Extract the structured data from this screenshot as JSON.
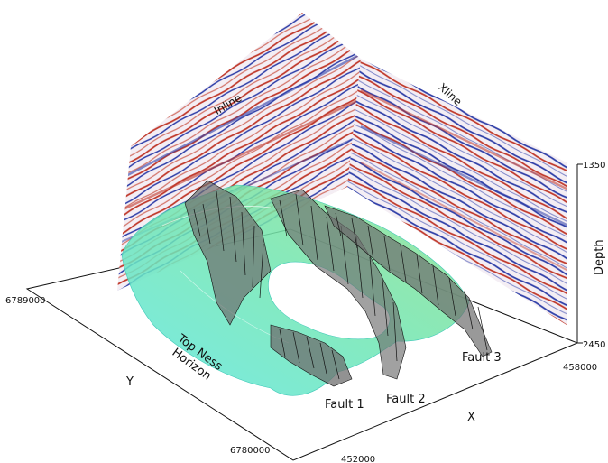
{
  "labels": {
    "inline": "Inline",
    "xline": "Xline",
    "horizon": [
      "Top Ness",
      "Horizon"
    ],
    "fault1": "Fault 1",
    "fault2": "Fault 2",
    "fault3": "Fault 3",
    "axis_x": "X",
    "axis_y": "Y",
    "axis_depth": "Depth"
  },
  "ticks": {
    "y_max": "6789000",
    "y_min": "6780000",
    "x_min": "452000",
    "x_max": "458000",
    "depth_top": "1350",
    "depth_bottom": "2450"
  },
  "colors": {
    "seismic_red": "#c0392b",
    "seismic_blue": "#2f3fa8",
    "horizon_cyan": "#4fe3d1",
    "horizon_green": "#7de38a",
    "fault_gray": "#6e6e6e",
    "fault_edge": "#111111"
  }
}
